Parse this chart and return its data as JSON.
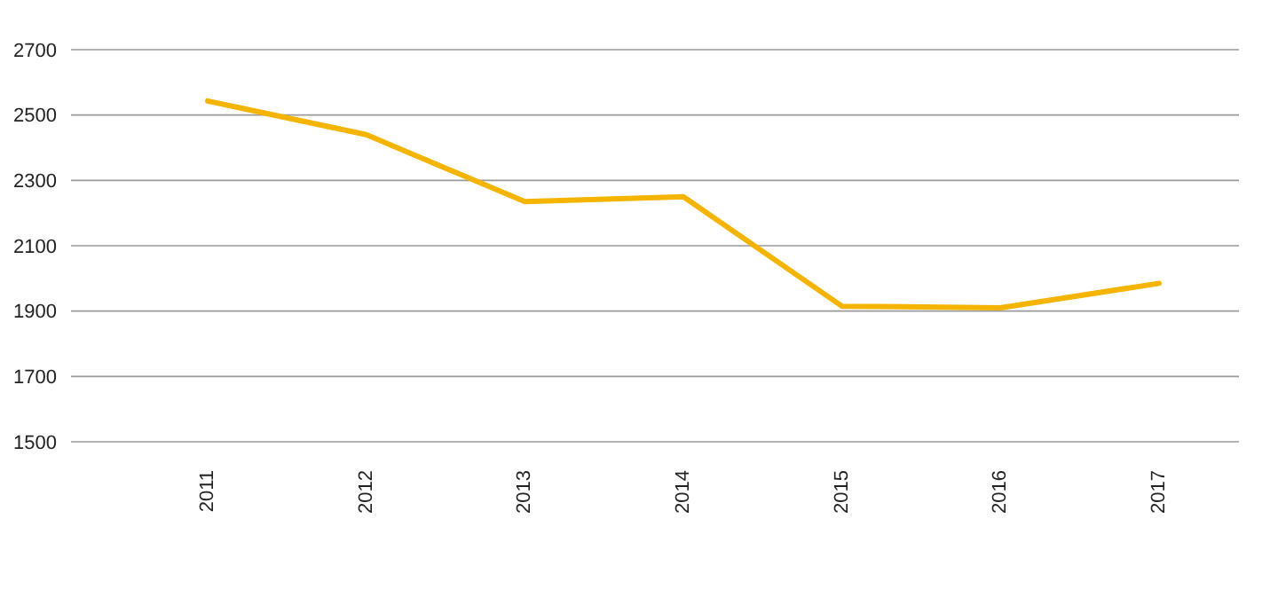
{
  "chart_data": {
    "type": "line",
    "categories": [
      "2011",
      "2012",
      "2013",
      "2014",
      "2015",
      "2016",
      "2017"
    ],
    "series": [
      {
        "color": "#f5b400",
        "values": [
          2543,
          2440,
          2235,
          2250,
          1915,
          1910,
          1985
        ]
      }
    ],
    "ylim": [
      1500,
      2700
    ],
    "yticks": [
      1500,
      1700,
      1900,
      2100,
      2300,
      2500,
      2700
    ],
    "grid": "y",
    "marker": "none",
    "line_style": "solid"
  }
}
